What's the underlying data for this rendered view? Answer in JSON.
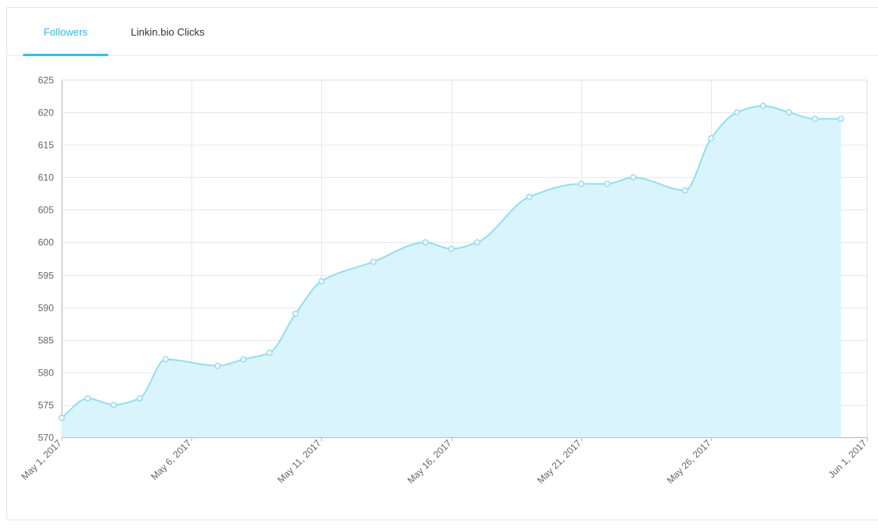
{
  "tabs": [
    {
      "label": "Followers",
      "active": true
    },
    {
      "label": "Linkin.bio Clicks",
      "active": false
    }
  ],
  "colors": {
    "accent": "#2fc0f0",
    "line": "#8fdff3",
    "fill": "#daf4fc",
    "grid": "#e8e8e8",
    "axis": "#bbbbbb"
  },
  "chart_data": {
    "type": "area",
    "x": [
      "May 1, 2017",
      "May 2, 2017",
      "May 3, 2017",
      "May 4, 2017",
      "May 5, 2017",
      "May 7, 2017",
      "May 8, 2017",
      "May 9, 2017",
      "May 10, 2017",
      "May 11, 2017",
      "May 13, 2017",
      "May 15, 2017",
      "May 16, 2017",
      "May 17, 2017",
      "May 19, 2017",
      "May 21, 2017",
      "May 22, 2017",
      "May 23, 2017",
      "May 25, 2017",
      "May 26, 2017",
      "May 27, 2017",
      "May 28, 2017",
      "May 29, 2017",
      "May 30, 2017",
      "May 31, 2017"
    ],
    "series": [
      {
        "values": [
          573,
          576,
          575,
          576,
          582,
          581,
          582,
          583,
          589,
          594,
          597,
          600,
          599,
          600,
          607,
          609,
          609,
          610,
          608,
          616,
          620,
          621,
          620,
          619,
          619
        ]
      }
    ],
    "xticks": [
      "May 1, 2017",
      "May 6, 2017",
      "May 11, 2017",
      "May 16, 2017",
      "May 21, 2017",
      "May 26, 2017",
      "Jun 1, 2017"
    ],
    "yticks": [
      570,
      575,
      580,
      585,
      590,
      595,
      600,
      605,
      610,
      615,
      620,
      625
    ],
    "ylim": [
      570,
      625
    ],
    "xlim": [
      "May 1, 2017",
      "Jun 1, 2017"
    ],
    "grid": true,
    "title": "",
    "xlabel": "",
    "ylabel": ""
  }
}
